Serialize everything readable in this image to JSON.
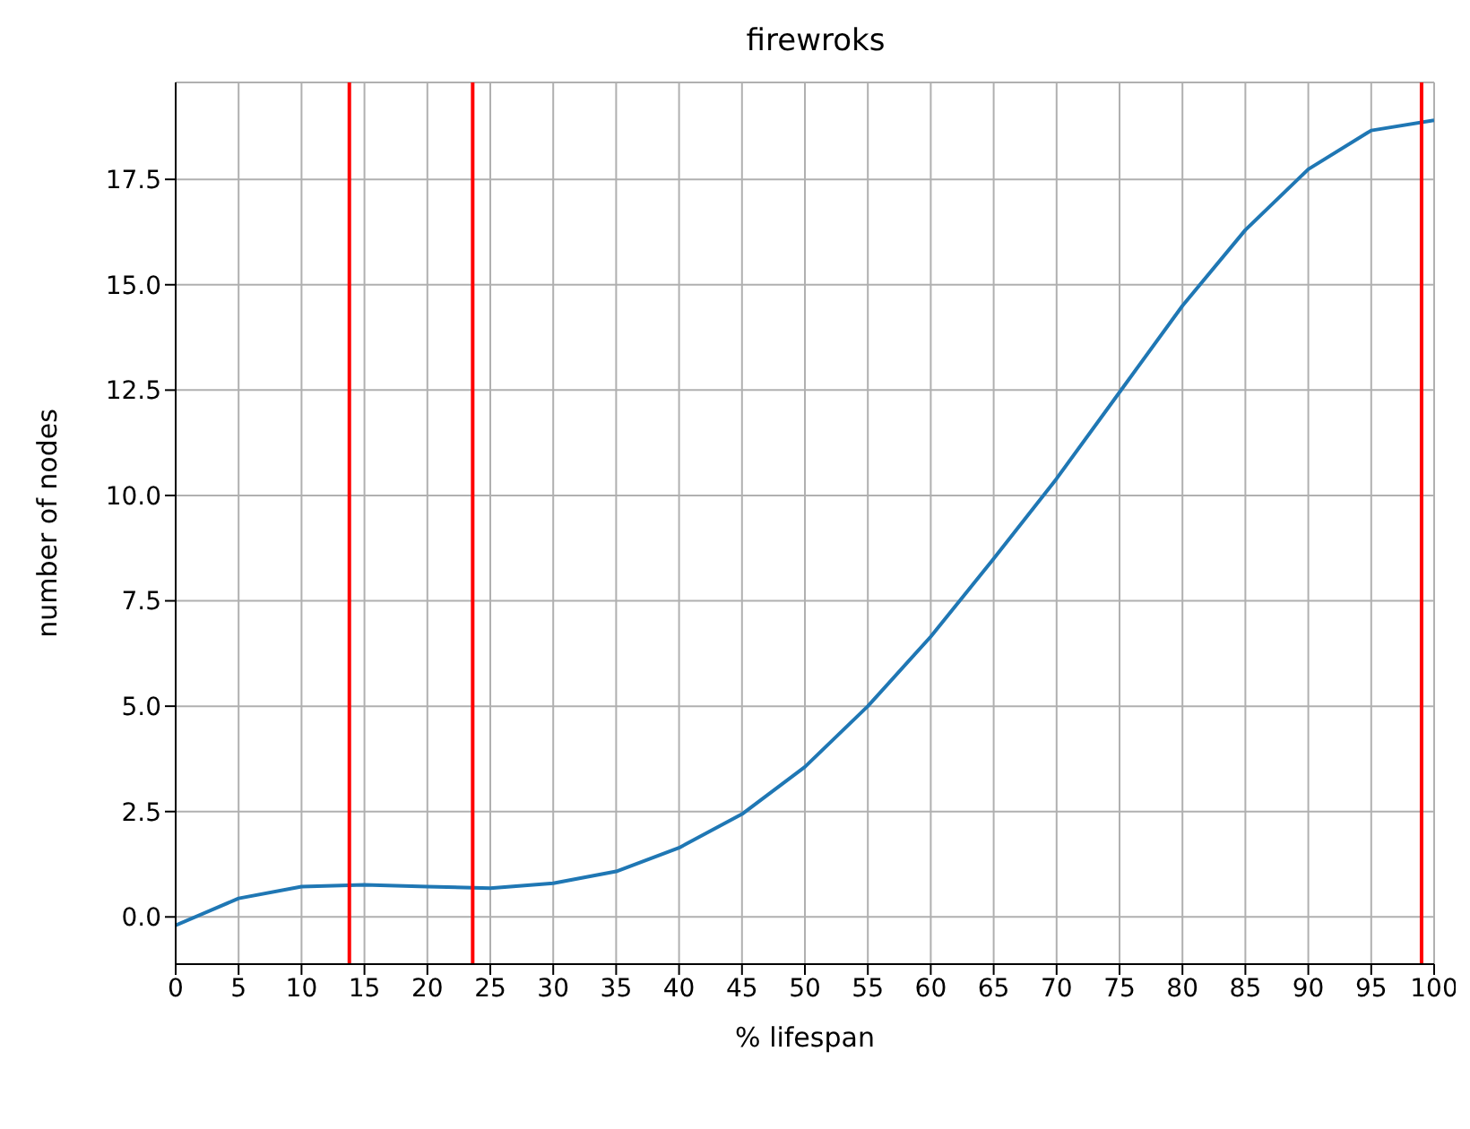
{
  "chart_data": {
    "type": "line",
    "title": "firewroks",
    "xlabel": "% lifespan",
    "ylabel": "number of nodes",
    "x": [
      0,
      5,
      10,
      15,
      20,
      25,
      30,
      35,
      40,
      45,
      50,
      55,
      60,
      65,
      70,
      75,
      80,
      85,
      90,
      95,
      100
    ],
    "series": [
      {
        "color": "#1f77b4",
        "values": [
          -0.2,
          0.44,
          0.72,
          0.76,
          0.72,
          0.68,
          0.8,
          1.08,
          1.64,
          2.44,
          3.56,
          5.0,
          6.65,
          8.5,
          10.4,
          12.45,
          14.5,
          16.3,
          17.74,
          18.66,
          18.9
        ]
      }
    ],
    "xlim": [
      0,
      100
    ],
    "xticks": [
      0,
      5,
      10,
      15,
      20,
      25,
      30,
      35,
      40,
      45,
      50,
      55,
      60,
      65,
      70,
      75,
      80,
      85,
      90,
      95,
      100
    ],
    "ylim": [
      -1.12,
      19.8
    ],
    "yticks": [
      {
        "value": 0,
        "label": "0.0"
      },
      {
        "value": 2.5,
        "label": "2.5"
      },
      {
        "value": 5,
        "label": "5.0"
      },
      {
        "value": 7.5,
        "label": "7.5"
      },
      {
        "value": 10,
        "label": "10.0"
      },
      {
        "value": 12.5,
        "label": "12.5"
      },
      {
        "value": 15,
        "label": "15.0"
      },
      {
        "value": 17.5,
        "label": "17.5"
      }
    ],
    "ref_lines": [
      {
        "axis": "x",
        "value": 13.8,
        "color": "#ff0000"
      },
      {
        "axis": "x",
        "value": 23.6,
        "color": "#ff0000"
      },
      {
        "axis": "x",
        "value": 99,
        "color": "#ff0000"
      }
    ],
    "grid": true,
    "marker": "none",
    "line_style": "solid"
  }
}
